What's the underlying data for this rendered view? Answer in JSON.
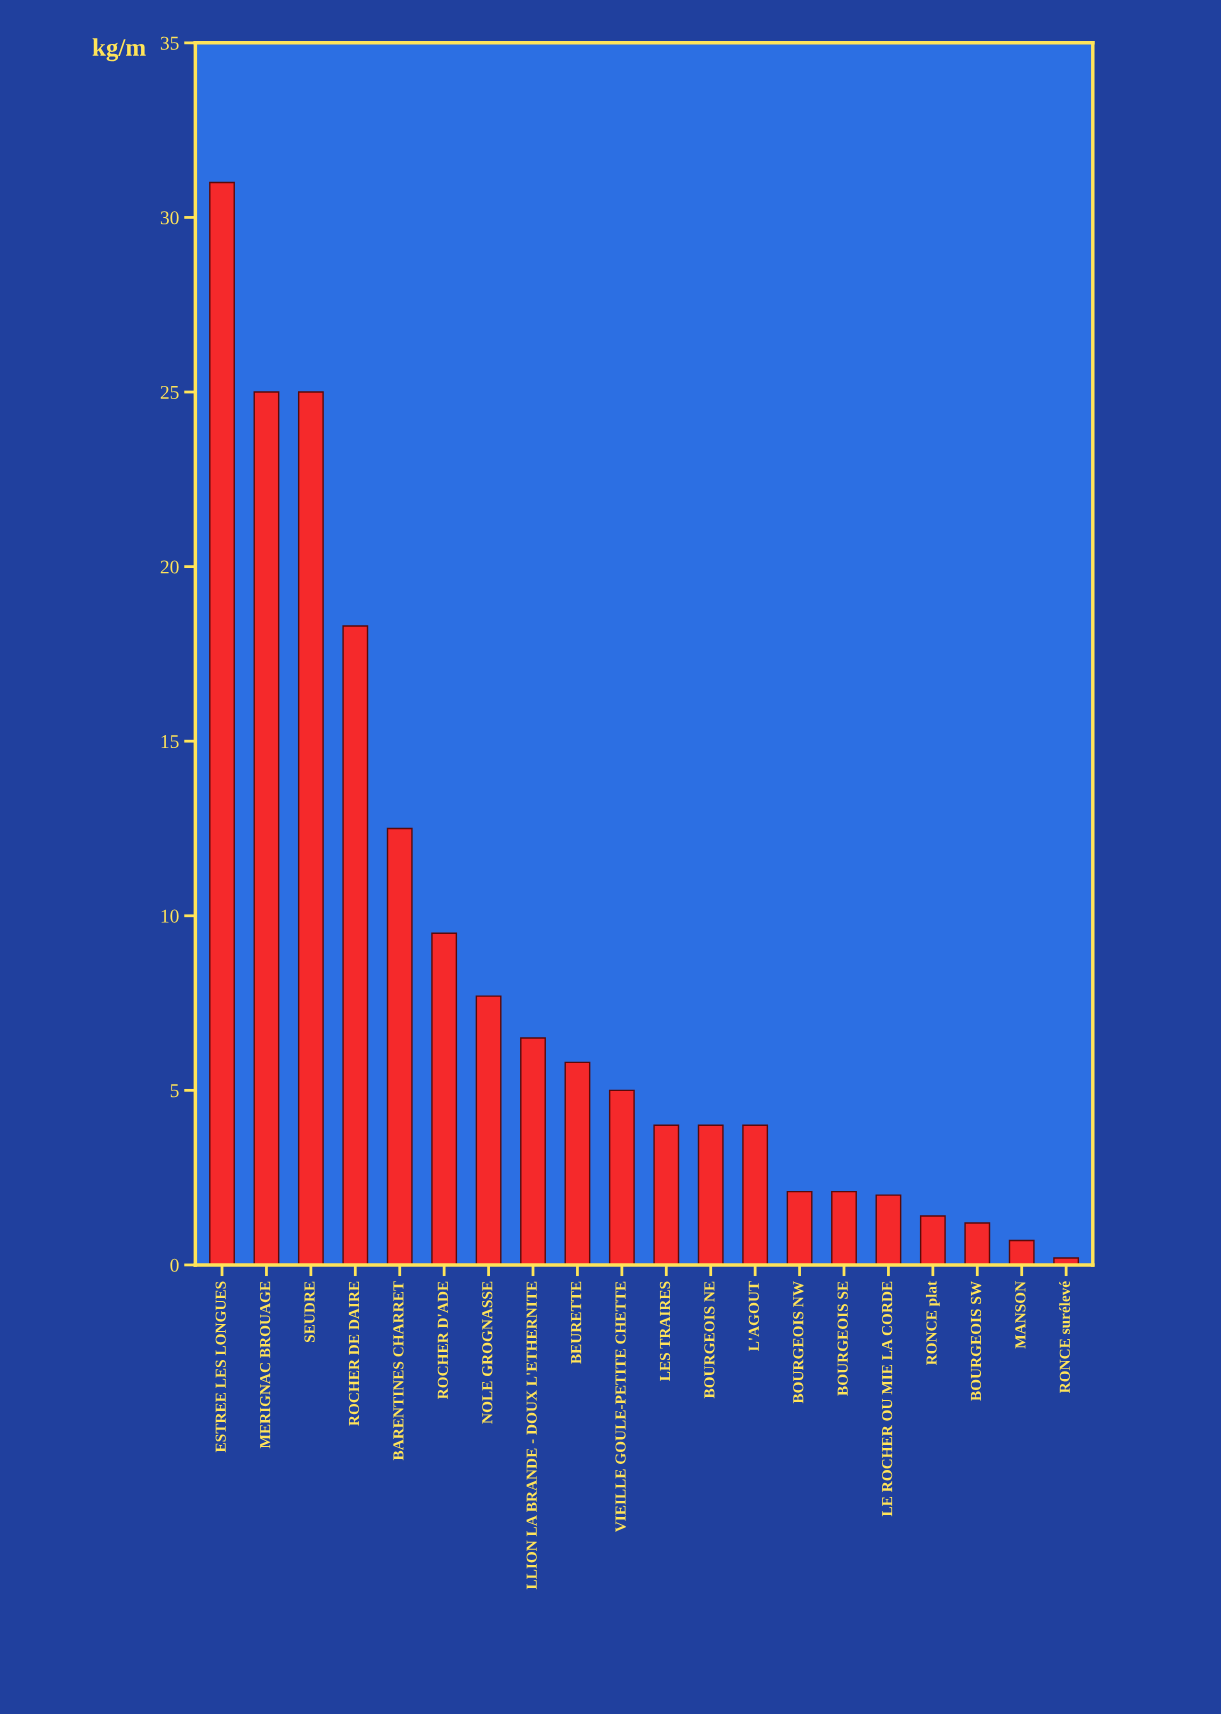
{
  "chart_data": {
    "type": "bar",
    "ylabel": "kg/m",
    "categories": [
      "ESTREE LES LONGUES",
      "MERIGNAC BROUAGE",
      "SEUDRE",
      "ROCHER DE DAIRE",
      "BARENTINES CHARRET",
      "ROCHER D'ADE",
      "NOLE GROGNASSE",
      "LLION LA BRANDE - DOUX L'ETHERNITE",
      "BEURETTE",
      "VIEILLE GOULE-PETITE CHETTE",
      "LES TRAIRES",
      "BOURGEOIS NE",
      "L'AGOUT",
      "BOURGEOIS NW",
      "BOURGEOIS SE",
      "LE ROCHER OU MIE LA CORDE",
      "RONCE plat",
      "BOURGEOIS SW",
      "MANSON",
      "RONCE surélevé"
    ],
    "values": [
      31.0,
      25.0,
      25.0,
      18.3,
      12.5,
      9.5,
      7.7,
      6.5,
      5.8,
      5.0,
      4.0,
      4.0,
      4.0,
      2.1,
      2.1,
      2.0,
      1.4,
      1.2,
      0.7,
      0.2
    ],
    "color": "#f5292b",
    "ylim": [
      0,
      35
    ],
    "yticks": [
      0,
      5,
      10,
      15,
      20,
      25,
      30,
      35
    ],
    "grid": false,
    "legend": false
  }
}
